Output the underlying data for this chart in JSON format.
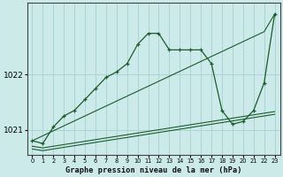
{
  "title": "Graphe pression niveau de la mer (hPa)",
  "bg_color": "#cdeaea",
  "grid_color": "#add4d4",
  "line_color": "#1a5c2a",
  "x_labels": [
    "0",
    "1",
    "2",
    "3",
    "4",
    "5",
    "6",
    "7",
    "8",
    "9",
    "10",
    "11",
    "12",
    "13",
    "14",
    "15",
    "16",
    "17",
    "18",
    "19",
    "20",
    "21",
    "22",
    "23"
  ],
  "ylim": [
    1020.55,
    1023.3
  ],
  "yticks": [
    1021,
    1022
  ],
  "series": {
    "main": [
      1020.8,
      1020.75,
      1021.05,
      1021.25,
      1021.35,
      1021.55,
      1021.75,
      1021.95,
      1022.05,
      1022.2,
      1022.55,
      1022.75,
      1022.75,
      1022.45,
      1022.45,
      1022.45,
      1022.45,
      1022.2,
      1021.35,
      1021.1,
      1021.15,
      1021.35,
      1021.85,
      1023.1
    ],
    "diagonal": [
      1020.8,
      1020.89,
      1020.98,
      1021.07,
      1021.16,
      1021.25,
      1021.34,
      1021.43,
      1021.52,
      1021.61,
      1021.7,
      1021.79,
      1021.88,
      1021.97,
      1022.06,
      1022.15,
      1022.24,
      1022.33,
      1022.42,
      1022.51,
      1022.6,
      1022.69,
      1022.78,
      1023.1
    ],
    "flat1": [
      1020.65,
      1020.62,
      1020.65,
      1020.68,
      1020.71,
      1020.74,
      1020.77,
      1020.8,
      1020.83,
      1020.86,
      1020.89,
      1020.92,
      1020.95,
      1020.98,
      1021.01,
      1021.04,
      1021.07,
      1021.1,
      1021.13,
      1021.16,
      1021.19,
      1021.22,
      1021.25,
      1021.28
    ],
    "flat2": [
      1020.7,
      1020.67,
      1020.7,
      1020.73,
      1020.76,
      1020.79,
      1020.82,
      1020.85,
      1020.88,
      1020.91,
      1020.94,
      1020.97,
      1021.0,
      1021.03,
      1021.06,
      1021.09,
      1021.12,
      1021.15,
      1021.18,
      1021.21,
      1021.24,
      1021.27,
      1021.3,
      1021.33
    ]
  }
}
